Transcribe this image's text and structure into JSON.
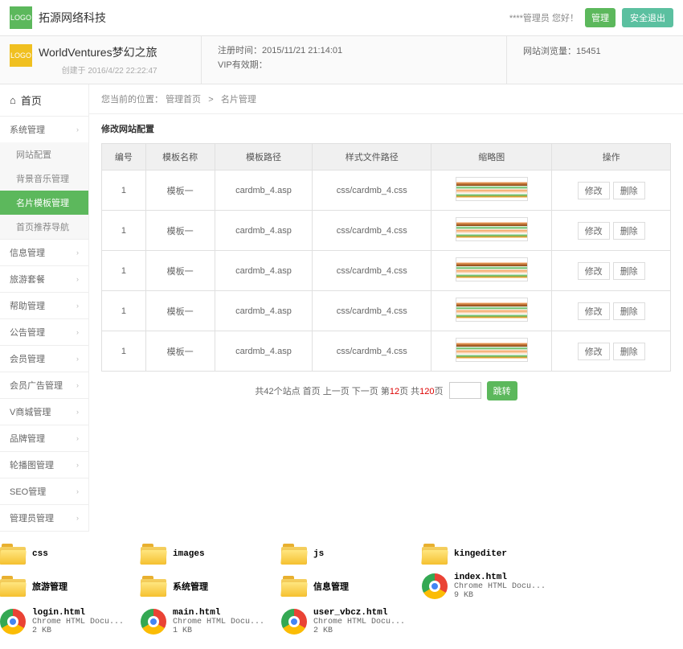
{
  "header": {
    "logo_text": "LOGO",
    "company": "拓源网络科技",
    "greeting": "****管理员 您好！",
    "btn_manage": "管理",
    "btn_logout": "安全退出"
  },
  "infobar": {
    "logo_text": "LOGO",
    "site_title": "WorldVentures梦幻之旅",
    "created": "创建于 2016/4/22 22:22:47",
    "reg_label": "注册时间：",
    "reg_value": "2015/11/21 21:14:01",
    "vip_label": "VIP有效期：",
    "visits_label": "网站浏览量：",
    "visits_value": "15451"
  },
  "sidebar": {
    "home": "首页",
    "groups": [
      {
        "title": "系统管理",
        "expanded": true,
        "items": [
          {
            "label": "网站配置",
            "active": false
          },
          {
            "label": "背景音乐管理",
            "active": false
          },
          {
            "label": "名片模板管理",
            "active": true
          },
          {
            "label": "首页推荐导航",
            "active": false
          }
        ]
      },
      {
        "title": "信息管理"
      },
      {
        "title": "旅游套餐"
      },
      {
        "title": "帮助管理"
      },
      {
        "title": "公告管理"
      },
      {
        "title": "会员管理"
      },
      {
        "title": "会员广告管理"
      },
      {
        "title": "V商城管理"
      },
      {
        "title": "品牌管理"
      },
      {
        "title": "轮播图管理"
      },
      {
        "title": "SEO管理"
      },
      {
        "title": "管理员管理"
      }
    ]
  },
  "breadcrumb": {
    "prefix": "您当前的位置：",
    "p1": "管理首页",
    "sep": ">",
    "p2": "名片管理"
  },
  "section_title": "修改网站配置",
  "table": {
    "headers": [
      "编号",
      "模板名称",
      "模板路径",
      "样式文件路径",
      "缩略图",
      "操作"
    ],
    "rows": [
      {
        "id": "1",
        "name": "模板一",
        "path": "cardmb_4.asp",
        "css": "css/cardmb_4.css"
      },
      {
        "id": "1",
        "name": "模板一",
        "path": "cardmb_4.asp",
        "css": "css/cardmb_4.css"
      },
      {
        "id": "1",
        "name": "模板一",
        "path": "cardmb_4.asp",
        "css": "css/cardmb_4.css"
      },
      {
        "id": "1",
        "name": "模板一",
        "path": "cardmb_4.asp",
        "css": "css/cardmb_4.css"
      },
      {
        "id": "1",
        "name": "模板一",
        "path": "cardmb_4.asp",
        "css": "css/cardmb_4.css"
      }
    ],
    "btn_edit": "修改",
    "btn_del": "删除"
  },
  "pagination": {
    "total_prefix": "共42个站点",
    "first": "首页",
    "prev": "上一页",
    "next": "下一页",
    "page_prefix": "第",
    "page_num": "12",
    "page_suffix": "页",
    "total_pages_prefix": "共",
    "total_pages": "120",
    "total_pages_suffix": "页",
    "jump": "跳转"
  },
  "files": [
    {
      "type": "folder",
      "name": "css"
    },
    {
      "type": "folder",
      "name": "images"
    },
    {
      "type": "folder",
      "name": "js"
    },
    {
      "type": "folder",
      "name": "kingediter"
    },
    {
      "type": "folder",
      "name": "旅游管理"
    },
    {
      "type": "folder",
      "name": "系统管理"
    },
    {
      "type": "folder",
      "name": "信息管理"
    },
    {
      "type": "chrome",
      "name": "index.html",
      "desc": "Chrome HTML Docu...",
      "size": "9 KB"
    },
    {
      "type": "chrome",
      "name": "login.html",
      "desc": "Chrome HTML Docu...",
      "size": "2 KB"
    },
    {
      "type": "chrome",
      "name": "main.html",
      "desc": "Chrome HTML Docu...",
      "size": "1 KB"
    },
    {
      "type": "chrome",
      "name": "user_vbcz.html",
      "desc": "Chrome HTML Docu...",
      "size": "2 KB"
    }
  ]
}
